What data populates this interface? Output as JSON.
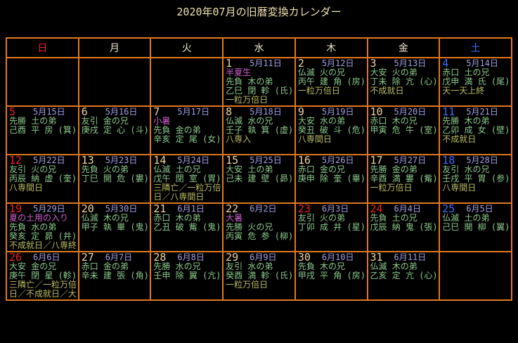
{
  "title": "2020年07月の旧暦変換カレンダー",
  "colors": {
    "background": "#000000",
    "border": "#e07820",
    "title_text": "#f0e2b0",
    "weekday_text": "#efe7d6",
    "sunday_holiday": "#ee2222",
    "saturday": "#3b6eff",
    "day_number": "#f0d5a0",
    "lunar_date": "#9e9ee6",
    "rokuyo_eto_text": "#8cc88c",
    "seasonal_term": "#ce5fce",
    "notes_text": "#b9ba62"
  },
  "weekdays": [
    {
      "label": "日",
      "type": "sun"
    },
    {
      "label": "月",
      "type": "normal"
    },
    {
      "label": "火",
      "type": "normal"
    },
    {
      "label": "水",
      "type": "normal"
    },
    {
      "label": "木",
      "type": "normal"
    },
    {
      "label": "金",
      "type": "normal"
    },
    {
      "label": "土",
      "type": "sat"
    }
  ],
  "weeks": [
    [
      null,
      null,
      null,
      {
        "num": "1",
        "lunar": "5月11日",
        "term": "半夏生",
        "rokuyo": "先負  木の弟",
        "eto": "乙巳 閉 軫 (氏)",
        "notes": "一粒万倍日"
      },
      {
        "num": "2",
        "lunar": "5月12日",
        "rokuyo": "仏滅  火の兄",
        "eto": "丙午 建 角 (房)",
        "notes": "一粒万倍日"
      },
      {
        "num": "3",
        "lunar": "5月13日",
        "rokuyo": "大安  火の弟",
        "eto": "丁未 除 亢 (心)",
        "notes": "不成就日"
      },
      {
        "num": "4",
        "num_color": "blue",
        "lunar": "5月14日",
        "rokuyo": "赤口  土の兄",
        "eto": "戊申 満 氏 (尾)",
        "notes": "天一天上終"
      }
    ],
    [
      {
        "num": "5",
        "num_color": "red",
        "lunar": "5月15日",
        "rokuyo": "先勝  土の弟",
        "eto": "己酉 平 房 (箕)"
      },
      {
        "num": "6",
        "lunar": "5月16日",
        "rokuyo": "友引  金の兄",
        "eto": "庚戌 定 心 (斗)"
      },
      {
        "num": "7",
        "lunar": "5月17日",
        "term": "小暑",
        "rokuyo": "先負  金の弟",
        "eto": "辛亥 定 尾 (女)"
      },
      {
        "num": "8",
        "lunar": "5月18日",
        "rokuyo": "仏滅  水の兄",
        "eto": "壬子 執 箕 (虚)",
        "notes": "八専入"
      },
      {
        "num": "9",
        "lunar": "5月19日",
        "rokuyo": "大安  水の弟",
        "eto": "癸丑 破 斗 (危)",
        "notes": "八専間日"
      },
      {
        "num": "10",
        "lunar": "5月20日",
        "rokuyo": "赤口  木の兄",
        "eto": "甲寅 危 牛 (室)"
      },
      {
        "num": "11",
        "num_color": "blue",
        "lunar": "5月21日",
        "rokuyo": "先勝  木の弟",
        "eto": "乙卯 成 女 (壁)",
        "notes": "不成就日"
      }
    ],
    [
      {
        "num": "12",
        "num_color": "red",
        "lunar": "5月22日",
        "rokuyo": "友引  火の兄",
        "eto": "丙辰 納 虚 (奎)",
        "notes": "八専間日"
      },
      {
        "num": "13",
        "lunar": "5月23日",
        "rokuyo": "先負  火の弟",
        "eto": "丁巳 開 危 (婁)"
      },
      {
        "num": "14",
        "lunar": "5月24日",
        "rokuyo": "仏滅  土の兄",
        "eto": "戊午 閉 室 (胃)",
        "notes": "三隣亡／一粒万倍日／八専間日"
      },
      {
        "num": "15",
        "lunar": "5月25日",
        "rokuyo": "大安  土の弟",
        "eto": "己未 建 壁 (昴)"
      },
      {
        "num": "16",
        "lunar": "5月26日",
        "rokuyo": "赤口  金の兄",
        "eto": "庚申 除 奎 (畢)"
      },
      {
        "num": "17",
        "lunar": "5月27日",
        "rokuyo": "先勝  金の弟",
        "eto": "辛酉 満 婁 (觜)",
        "notes": "一粒万倍日"
      },
      {
        "num": "18",
        "num_color": "blue",
        "lunar": "5月28日",
        "rokuyo": "友引  水の兄",
        "eto": "壬戌 平 胃 (参)",
        "notes": "八専間日"
      }
    ],
    [
      {
        "num": "19",
        "num_color": "red",
        "lunar": "5月29日",
        "term": "夏の土用の入り",
        "rokuyo": "先負  水の弟",
        "eto": "癸亥 定 昴 (井)",
        "notes": "不成就日／八専終"
      },
      {
        "num": "20",
        "lunar": "5月30日",
        "rokuyo": "仏滅  木の兄",
        "eto": "甲子 執 畢 (鬼)"
      },
      {
        "num": "21",
        "lunar": "6月1日",
        "rokuyo": "赤口  木の弟",
        "eto": "乙丑 破 觜 (鬼)"
      },
      {
        "num": "22",
        "lunar": "6月2日",
        "term": "大暑",
        "rokuyo": "先勝  火の兄",
        "eto": "丙寅 危 参 (柳)"
      },
      {
        "num": "23",
        "num_color": "red",
        "lunar": "6月3日",
        "rokuyo": "友引  火の弟",
        "eto": "丁卯 成 井 (星)"
      },
      {
        "num": "24",
        "num_color": "red",
        "lunar": "6月4日",
        "rokuyo": "先負  土の兄",
        "eto": "戊辰 納 鬼 (張)"
      },
      {
        "num": "25",
        "num_color": "blue",
        "lunar": "6月5日",
        "rokuyo": "仏滅  土の弟",
        "eto": "己巳 開 柳 (翼)"
      }
    ],
    [
      {
        "num": "26",
        "num_color": "red",
        "lunar": "6月6日",
        "rokuyo": "大安  金の兄",
        "eto": "庚午 閉 星 (軫)",
        "notes": "三隣亡／一粒万倍日／不成就日／大"
      },
      {
        "num": "27",
        "lunar": "6月7日",
        "rokuyo": "赤口  金の弟",
        "eto": "辛未 建 張 (角)"
      },
      {
        "num": "28",
        "lunar": "6月8日",
        "rokuyo": "先勝  水の兄",
        "eto": "壬申 除 翼 (亢)"
      },
      {
        "num": "29",
        "lunar": "6月9日",
        "rokuyo": "友引  水の弟",
        "eto": "癸酉 満 軫 (氏)",
        "notes": "一粒万倍日"
      },
      {
        "num": "30",
        "lunar": "6月10日",
        "rokuyo": "先負  木の兄",
        "eto": "甲戌 平 角 (房)"
      },
      {
        "num": "31",
        "lunar": "6月11日",
        "rokuyo": "仏滅  木の弟",
        "eto": "乙亥 定 亢 (心)"
      },
      null
    ]
  ]
}
